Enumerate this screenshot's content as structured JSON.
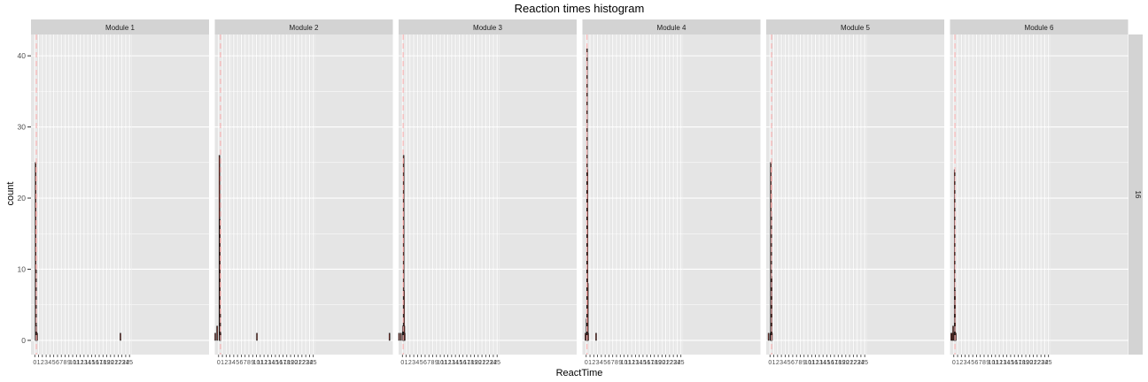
{
  "chart_data": {
    "type": "bar",
    "title": "Reaction times histogram",
    "xlabel": "ReactTime",
    "ylabel": "count",
    "ylim": [
      -2,
      43
    ],
    "yticks": [
      0,
      10,
      20,
      30,
      40
    ],
    "xlim": [
      -1,
      46
    ],
    "xticks_shown_range": [
      0,
      25
    ],
    "xtick_labels": [
      "0",
      "1",
      "2",
      "3",
      "4",
      "5",
      "6",
      "7",
      "8",
      "9",
      "10",
      "11",
      "12",
      "13",
      "14",
      "15",
      "16",
      "17",
      "18",
      "19",
      "20",
      "21",
      "22",
      "23",
      "24",
      "25"
    ],
    "grid": true,
    "facet_row_label": "16",
    "mean_line_color": "#f8b4b4",
    "bar_outline_color": "#1a1a1a",
    "bar_fill_color": "#c0392b",
    "panel_background": "#e5e5e5",
    "strip_background": "#d3d3d3",
    "panels": [
      {
        "name": "Module 1",
        "mean_x": 0.4,
        "bins": [
          {
            "x": 0.0,
            "count": 0
          },
          {
            "x": 0.1,
            "count": 25
          },
          {
            "x": 0.2,
            "count": 10
          },
          {
            "x": 0.3,
            "count": 2
          },
          {
            "x": 0.4,
            "count": 1
          },
          {
            "x": 0.5,
            "count": 1
          },
          {
            "x": 22.5,
            "count": 1
          }
        ]
      },
      {
        "name": "Module 2",
        "mean_x": 0.5,
        "bins": [
          {
            "x": -1.0,
            "count": 1
          },
          {
            "x": -0.5,
            "count": 2
          },
          {
            "x": 0.1,
            "count": 26
          },
          {
            "x": 0.2,
            "count": 17
          },
          {
            "x": 0.3,
            "count": 4
          },
          {
            "x": 0.4,
            "count": 1
          },
          {
            "x": 10.0,
            "count": 1
          },
          {
            "x": 45.0,
            "count": 1
          }
        ]
      },
      {
        "name": "Module 3",
        "mean_x": 0.2,
        "bins": [
          {
            "x": -1.0,
            "count": 1
          },
          {
            "x": -0.5,
            "count": 1
          },
          {
            "x": 0.0,
            "count": 2
          },
          {
            "x": 0.1,
            "count": 2
          },
          {
            "x": 0.2,
            "count": 26
          },
          {
            "x": 0.3,
            "count": 7
          },
          {
            "x": 0.4,
            "count": 2
          },
          {
            "x": 0.5,
            "count": 1
          }
        ]
      },
      {
        "name": "Module 4",
        "mean_x": 0.2,
        "bins": [
          {
            "x": -0.3,
            "count": 1
          },
          {
            "x": 0.0,
            "count": 3
          },
          {
            "x": 0.1,
            "count": 41
          },
          {
            "x": 0.2,
            "count": 24
          },
          {
            "x": 0.3,
            "count": 8
          },
          {
            "x": 0.4,
            "count": 1
          },
          {
            "x": 2.5,
            "count": 1
          }
        ]
      },
      {
        "name": "Module 5",
        "mean_x": 0.4,
        "bins": [
          {
            "x": -0.5,
            "count": 1
          },
          {
            "x": 0.0,
            "count": 1
          },
          {
            "x": 0.1,
            "count": 25
          },
          {
            "x": 0.2,
            "count": 18
          },
          {
            "x": 0.3,
            "count": 9
          },
          {
            "x": 0.4,
            "count": 1
          }
        ]
      },
      {
        "name": "Module 6",
        "mean_x": 0.3,
        "bins": [
          {
            "x": -0.8,
            "count": 1
          },
          {
            "x": -0.5,
            "count": 1
          },
          {
            "x": -0.3,
            "count": 2
          },
          {
            "x": 0.0,
            "count": 1
          },
          {
            "x": 0.1,
            "count": 24
          },
          {
            "x": 0.2,
            "count": 7
          },
          {
            "x": 0.3,
            "count": 1
          },
          {
            "x": 0.4,
            "count": 1
          }
        ]
      }
    ]
  }
}
